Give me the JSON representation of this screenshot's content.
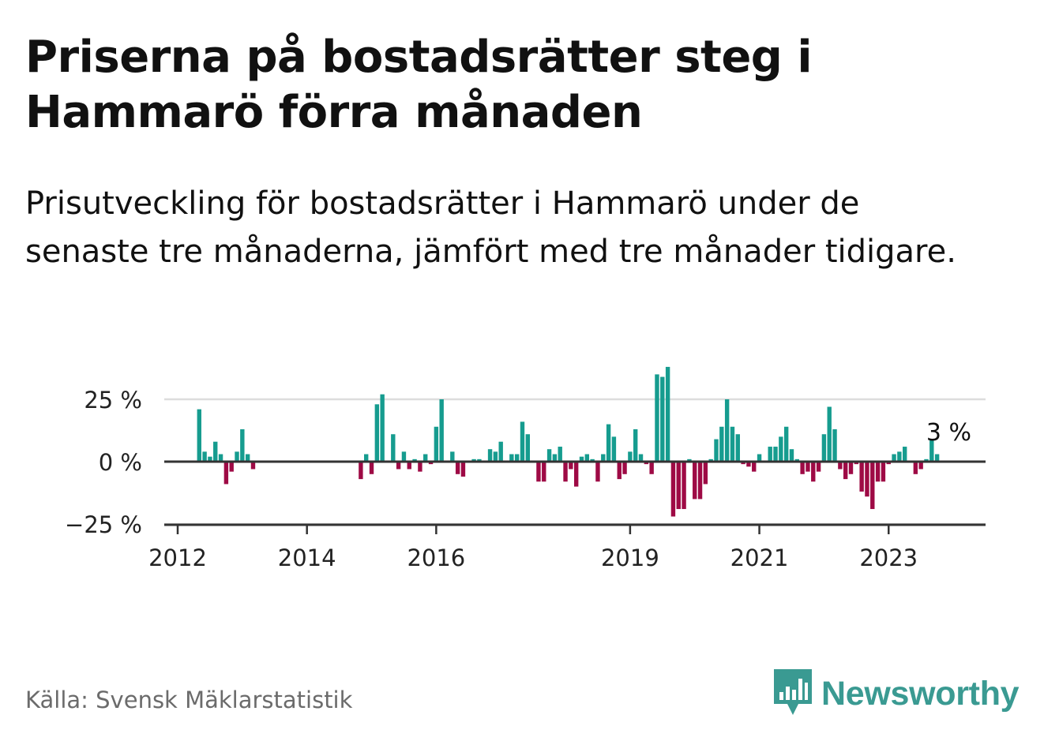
{
  "title": "Priserna på bostadsrätter steg i Hammarö förra månaden",
  "subtitle": "Prisutveckling för bostadsrätter i Hammarö under de senaste tre månaderna, jämfört med tre månader tidigare.",
  "source": "Källa: Svensk Mäklarstatistik",
  "brand": "Newsworthy",
  "colors": {
    "positive": "#169c8f",
    "negative": "#9e0a45",
    "grid": "#dddddd",
    "axis": "#333333",
    "brand": "#3a9a92"
  },
  "icons": {
    "brand_logo": "newsworthy-bar-chart-icon"
  },
  "chart_data": {
    "type": "bar",
    "title": "",
    "xlabel": "",
    "ylabel": "",
    "ylim": [
      -25,
      40
    ],
    "y_ticks": [
      {
        "value": 25,
        "label": "25 %"
      },
      {
        "value": 0,
        "label": "0 %"
      },
      {
        "value": -25,
        "label": "−25 %"
      }
    ],
    "x_ticks": [
      {
        "value": "2012-01",
        "label": "2012"
      },
      {
        "value": "2014-01",
        "label": "2014"
      },
      {
        "value": "2016-01",
        "label": "2016"
      },
      {
        "value": "2019-01",
        "label": "2019"
      },
      {
        "value": "2021-01",
        "label": "2021"
      },
      {
        "value": "2023-01",
        "label": "2023"
      }
    ],
    "grid": true,
    "annotation": {
      "x": "2023-11",
      "text": "3 %"
    },
    "points": [
      {
        "x": "2012-05",
        "y": 21
      },
      {
        "x": "2012-06",
        "y": 4
      },
      {
        "x": "2012-07",
        "y": 2
      },
      {
        "x": "2012-08",
        "y": 8
      },
      {
        "x": "2012-09",
        "y": 3
      },
      {
        "x": "2012-10",
        "y": -9
      },
      {
        "x": "2012-11",
        "y": -4
      },
      {
        "x": "2012-12",
        "y": 4
      },
      {
        "x": "2013-01",
        "y": 13
      },
      {
        "x": "2013-02",
        "y": 3
      },
      {
        "x": "2013-03",
        "y": -3
      },
      {
        "x": "2014-11",
        "y": -7
      },
      {
        "x": "2014-12",
        "y": 3
      },
      {
        "x": "2015-01",
        "y": -5
      },
      {
        "x": "2015-02",
        "y": 23
      },
      {
        "x": "2015-03",
        "y": 27
      },
      {
        "x": "2015-05",
        "y": 11
      },
      {
        "x": "2015-06",
        "y": -3
      },
      {
        "x": "2015-07",
        "y": 4
      },
      {
        "x": "2015-08",
        "y": -3
      },
      {
        "x": "2015-09",
        "y": 1
      },
      {
        "x": "2015-10",
        "y": -4
      },
      {
        "x": "2015-11",
        "y": 3
      },
      {
        "x": "2015-12",
        "y": -1
      },
      {
        "x": "2016-01",
        "y": 14
      },
      {
        "x": "2016-02",
        "y": 25
      },
      {
        "x": "2016-04",
        "y": 4
      },
      {
        "x": "2016-05",
        "y": -5
      },
      {
        "x": "2016-06",
        "y": -6
      },
      {
        "x": "2016-08",
        "y": 1
      },
      {
        "x": "2016-09",
        "y": 1
      },
      {
        "x": "2016-11",
        "y": 5
      },
      {
        "x": "2016-12",
        "y": 4
      },
      {
        "x": "2017-01",
        "y": 8
      },
      {
        "x": "2017-03",
        "y": 3
      },
      {
        "x": "2017-04",
        "y": 3
      },
      {
        "x": "2017-05",
        "y": 16
      },
      {
        "x": "2017-06",
        "y": 11
      },
      {
        "x": "2017-08",
        "y": -8
      },
      {
        "x": "2017-09",
        "y": -8
      },
      {
        "x": "2017-10",
        "y": 5
      },
      {
        "x": "2017-11",
        "y": 3
      },
      {
        "x": "2017-12",
        "y": 6
      },
      {
        "x": "2018-01",
        "y": -8
      },
      {
        "x": "2018-02",
        "y": -3
      },
      {
        "x": "2018-03",
        "y": -10
      },
      {
        "x": "2018-04",
        "y": 2
      },
      {
        "x": "2018-05",
        "y": 3
      },
      {
        "x": "2018-06",
        "y": 1
      },
      {
        "x": "2018-07",
        "y": -8
      },
      {
        "x": "2018-08",
        "y": 3
      },
      {
        "x": "2018-09",
        "y": 15
      },
      {
        "x": "2018-10",
        "y": 10
      },
      {
        "x": "2018-11",
        "y": -7
      },
      {
        "x": "2018-12",
        "y": -5
      },
      {
        "x": "2019-01",
        "y": 4
      },
      {
        "x": "2019-02",
        "y": 13
      },
      {
        "x": "2019-03",
        "y": 3
      },
      {
        "x": "2019-04",
        "y": -1
      },
      {
        "x": "2019-05",
        "y": -5
      },
      {
        "x": "2019-06",
        "y": 35
      },
      {
        "x": "2019-07",
        "y": 34
      },
      {
        "x": "2019-08",
        "y": 38
      },
      {
        "x": "2019-09",
        "y": -22
      },
      {
        "x": "2019-10",
        "y": -19
      },
      {
        "x": "2019-11",
        "y": -19
      },
      {
        "x": "2019-12",
        "y": 1
      },
      {
        "x": "2020-01",
        "y": -15
      },
      {
        "x": "2020-02",
        "y": -15
      },
      {
        "x": "2020-03",
        "y": -9
      },
      {
        "x": "2020-04",
        "y": 1
      },
      {
        "x": "2020-05",
        "y": 9
      },
      {
        "x": "2020-06",
        "y": 14
      },
      {
        "x": "2020-07",
        "y": 25
      },
      {
        "x": "2020-08",
        "y": 14
      },
      {
        "x": "2020-09",
        "y": 11
      },
      {
        "x": "2020-10",
        "y": -1
      },
      {
        "x": "2020-11",
        "y": -2
      },
      {
        "x": "2020-12",
        "y": -4
      },
      {
        "x": "2021-01",
        "y": 3
      },
      {
        "x": "2021-03",
        "y": 6
      },
      {
        "x": "2021-04",
        "y": 6
      },
      {
        "x": "2021-05",
        "y": 10
      },
      {
        "x": "2021-06",
        "y": 14
      },
      {
        "x": "2021-07",
        "y": 5
      },
      {
        "x": "2021-08",
        "y": 1
      },
      {
        "x": "2021-09",
        "y": -5
      },
      {
        "x": "2021-10",
        "y": -4
      },
      {
        "x": "2021-11",
        "y": -8
      },
      {
        "x": "2021-12",
        "y": -4
      },
      {
        "x": "2022-01",
        "y": 11
      },
      {
        "x": "2022-02",
        "y": 22
      },
      {
        "x": "2022-03",
        "y": 13
      },
      {
        "x": "2022-04",
        "y": -3
      },
      {
        "x": "2022-05",
        "y": -7
      },
      {
        "x": "2022-06",
        "y": -5
      },
      {
        "x": "2022-07",
        "y": -1
      },
      {
        "x": "2022-08",
        "y": -12
      },
      {
        "x": "2022-09",
        "y": -14
      },
      {
        "x": "2022-10",
        "y": -19
      },
      {
        "x": "2022-11",
        "y": -8
      },
      {
        "x": "2022-12",
        "y": -8
      },
      {
        "x": "2023-01",
        "y": -1
      },
      {
        "x": "2023-02",
        "y": 3
      },
      {
        "x": "2023-03",
        "y": 4
      },
      {
        "x": "2023-04",
        "y": 6
      },
      {
        "x": "2023-06",
        "y": -5
      },
      {
        "x": "2023-07",
        "y": -3
      },
      {
        "x": "2023-08",
        "y": 1
      },
      {
        "x": "2023-09",
        "y": 9
      },
      {
        "x": "2023-10",
        "y": 3
      }
    ]
  }
}
